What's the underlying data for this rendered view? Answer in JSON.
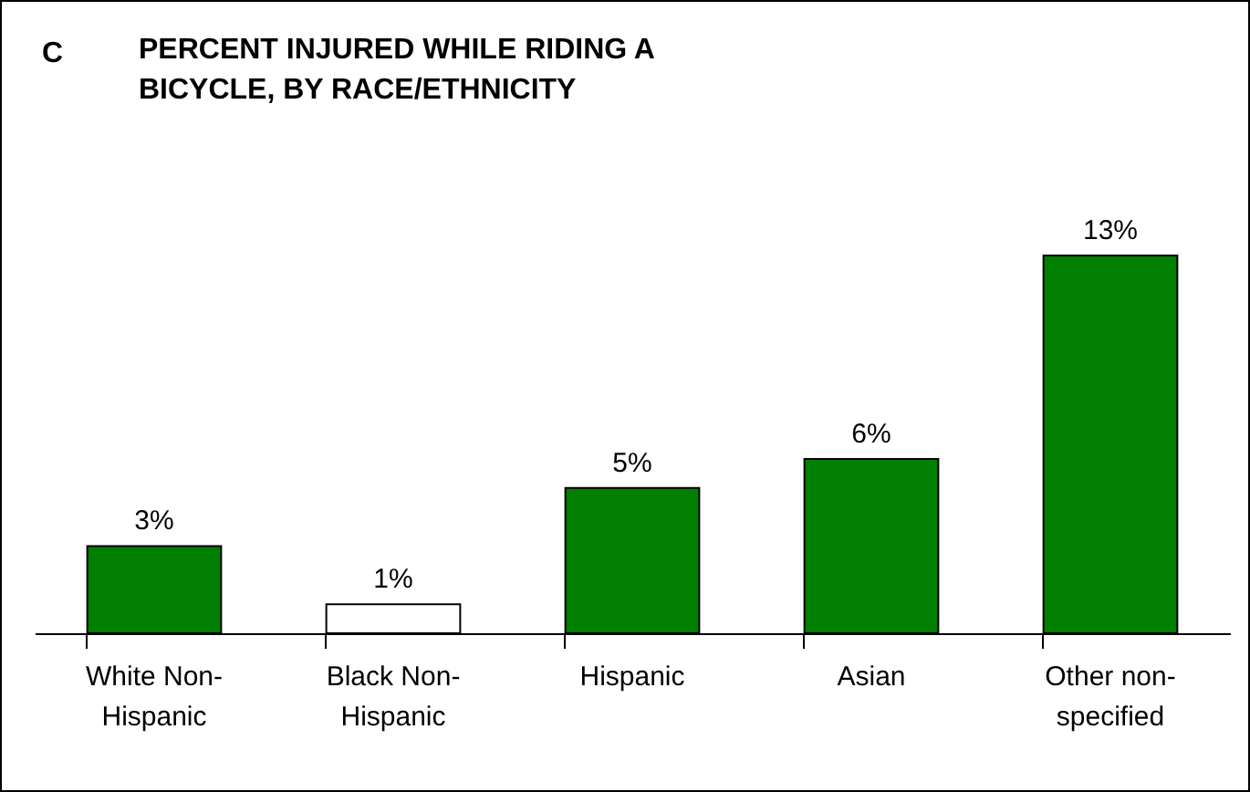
{
  "chart_data": {
    "type": "bar",
    "title": "PERCENT INJURED WHILE RIDING A\nBICYCLE, BY RACE/ETHNICITY",
    "annotations": [
      "C"
    ],
    "categories": [
      "White Non-Hispanic",
      "Black Non-Hispanic",
      "Hispanic",
      "Asian",
      "Other non-specified"
    ],
    "values": [
      3,
      1,
      5,
      6,
      13
    ],
    "colors": [
      "#007f00",
      "#ffffff",
      "#007f00",
      "#007f00",
      "#007f00"
    ],
    "value_labels": [
      "3%",
      "1%",
      "5%",
      "6%",
      "13%"
    ],
    "grid": false,
    "legend": false
  }
}
